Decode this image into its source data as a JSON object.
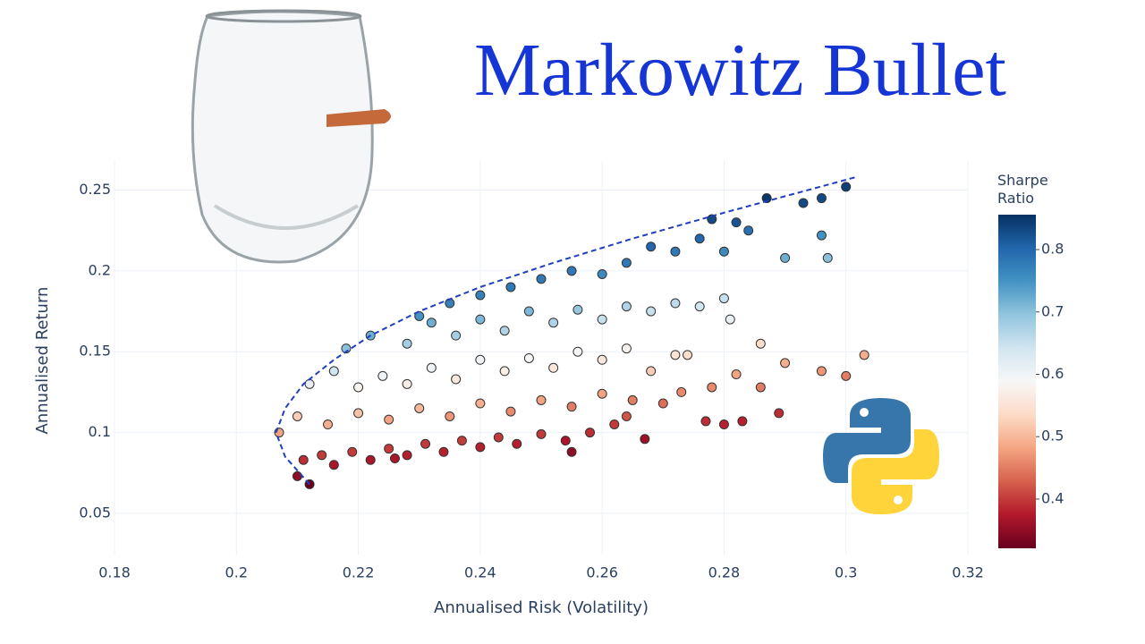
{
  "chart_data": {
    "type": "scatter",
    "title": "Markowitz Bullet",
    "xlabel": "Annualised Risk (Volatility)",
    "ylabel": "Annualised Return",
    "xlim": [
      0.18,
      0.32
    ],
    "xticks": [
      0.18,
      0.2,
      0.22,
      0.24,
      0.26,
      0.28,
      0.3,
      0.32
    ],
    "ylim": [
      0.0245,
      0.268
    ],
    "yticks": [
      0.05,
      0.1,
      0.15,
      0.2,
      0.25
    ],
    "grid": true,
    "colorbar": {
      "title": "Sharpe Ratio",
      "lim": [
        0.321,
        0.856
      ],
      "ticks": [
        0.4,
        0.5,
        0.6,
        0.7,
        0.8
      ],
      "colorscale": [
        "#67001f",
        "#b2182b",
        "#d6604d",
        "#f4a582",
        "#fddbc7",
        "#f7f7f7",
        "#d1e5f0",
        "#92c5de",
        "#4393c3",
        "#2166ac",
        "#053061"
      ]
    },
    "series": [
      {
        "type": "scatter",
        "x": [
          0.21,
          0.212,
          0.211,
          0.214,
          0.216,
          0.219,
          0.222,
          0.225,
          0.228,
          0.231,
          0.234,
          0.237,
          0.24,
          0.243,
          0.246,
          0.25,
          0.254,
          0.258,
          0.262,
          0.255,
          0.267,
          0.277,
          0.28,
          0.283,
          0.289,
          0.264,
          0.226,
          0.207,
          0.21,
          0.215,
          0.22,
          0.225,
          0.23,
          0.235,
          0.24,
          0.245,
          0.25,
          0.255,
          0.26,
          0.265,
          0.27,
          0.273,
          0.278,
          0.282,
          0.286,
          0.296,
          0.3,
          0.303,
          0.212,
          0.216,
          0.22,
          0.224,
          0.228,
          0.232,
          0.236,
          0.24,
          0.244,
          0.248,
          0.252,
          0.256,
          0.26,
          0.264,
          0.268,
          0.272,
          0.274,
          0.286,
          0.29,
          0.218,
          0.222,
          0.228,
          0.232,
          0.236,
          0.24,
          0.244,
          0.248,
          0.252,
          0.256,
          0.26,
          0.264,
          0.268,
          0.272,
          0.276,
          0.281,
          0.28,
          0.23,
          0.235,
          0.24,
          0.245,
          0.25,
          0.255,
          0.26,
          0.264,
          0.268,
          0.272,
          0.276,
          0.28,
          0.284,
          0.287,
          0.29,
          0.293,
          0.296,
          0.3,
          0.296,
          0.297,
          0.278,
          0.282
        ],
        "y": [
          0.073,
          0.068,
          0.083,
          0.086,
          0.08,
          0.088,
          0.083,
          0.09,
          0.086,
          0.093,
          0.088,
          0.095,
          0.091,
          0.097,
          0.093,
          0.099,
          0.095,
          0.1,
          0.105,
          0.088,
          0.096,
          0.107,
          0.105,
          0.107,
          0.112,
          0.11,
          0.084,
          0.1,
          0.11,
          0.105,
          0.112,
          0.108,
          0.115,
          0.11,
          0.118,
          0.113,
          0.12,
          0.116,
          0.124,
          0.12,
          0.118,
          0.125,
          0.128,
          0.136,
          0.128,
          0.138,
          0.135,
          0.148,
          0.13,
          0.138,
          0.128,
          0.135,
          0.13,
          0.14,
          0.133,
          0.145,
          0.138,
          0.146,
          0.14,
          0.15,
          0.145,
          0.152,
          0.138,
          0.148,
          0.148,
          0.155,
          0.143,
          0.152,
          0.16,
          0.155,
          0.168,
          0.16,
          0.17,
          0.163,
          0.175,
          0.168,
          0.176,
          0.17,
          0.178,
          0.175,
          0.18,
          0.178,
          0.17,
          0.183,
          0.172,
          0.18,
          0.185,
          0.19,
          0.195,
          0.2,
          0.198,
          0.205,
          0.215,
          0.212,
          0.22,
          0.212,
          0.225,
          0.245,
          0.208,
          0.242,
          0.245,
          0.252,
          0.222,
          0.208,
          0.232,
          0.23
        ],
        "color_values": [
          0.35,
          0.32,
          0.39,
          0.4,
          0.37,
          0.4,
          0.37,
          0.4,
          0.38,
          0.4,
          0.38,
          0.4,
          0.38,
          0.4,
          0.38,
          0.4,
          0.37,
          0.39,
          0.4,
          0.35,
          0.36,
          0.39,
          0.38,
          0.38,
          0.39,
          0.42,
          0.37,
          0.48,
          0.52,
          0.49,
          0.51,
          0.48,
          0.5,
          0.47,
          0.49,
          0.46,
          0.48,
          0.45,
          0.48,
          0.45,
          0.44,
          0.46,
          0.46,
          0.48,
          0.45,
          0.47,
          0.45,
          0.49,
          0.61,
          0.64,
          0.58,
          0.6,
          0.57,
          0.6,
          0.56,
          0.6,
          0.57,
          0.59,
          0.56,
          0.59,
          0.56,
          0.58,
          0.52,
          0.55,
          0.54,
          0.54,
          0.49,
          0.7,
          0.72,
          0.68,
          0.72,
          0.68,
          0.71,
          0.67,
          0.71,
          0.67,
          0.69,
          0.65,
          0.67,
          0.65,
          0.66,
          0.64,
          0.61,
          0.65,
          0.75,
          0.77,
          0.77,
          0.78,
          0.78,
          0.78,
          0.76,
          0.78,
          0.8,
          0.78,
          0.8,
          0.76,
          0.79,
          0.85,
          0.72,
          0.83,
          0.83,
          0.84,
          0.75,
          0.7,
          0.83,
          0.82
        ]
      },
      {
        "type": "line",
        "dash": true,
        "color": "#1f3fbf",
        "x": [
          0.212,
          0.208,
          0.2065,
          0.208,
          0.211,
          0.216,
          0.222,
          0.23,
          0.24,
          0.252,
          0.265,
          0.28,
          0.3016
        ],
        "y": [
          0.068,
          0.085,
          0.1,
          0.115,
          0.13,
          0.145,
          0.16,
          0.175,
          0.19,
          0.205,
          0.22,
          0.236,
          0.258
        ]
      }
    ]
  }
}
